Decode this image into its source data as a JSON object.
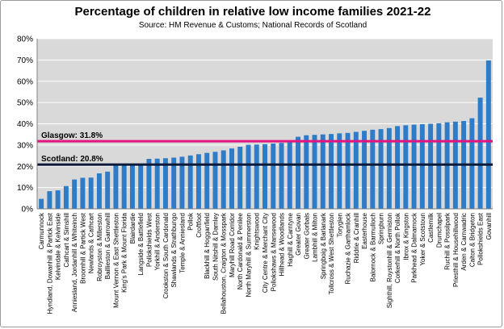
{
  "chart_data": {
    "type": "bar",
    "title": "Percentage of children in relative low income families 2021-22",
    "subtitle": "Source: HM Revenue & Customs; National Records of Scotland",
    "xlabel": "",
    "ylabel": "",
    "ylim": [
      0,
      80
    ],
    "yticks": [
      "0%",
      "10%",
      "20%",
      "30%",
      "40%",
      "50%",
      "60%",
      "70%",
      "80%"
    ],
    "grid": true,
    "bar_color": "#2e7bc8",
    "categories": [
      "Carmunnock",
      "Hyndland, Dowanhill & Partick East",
      "Kelvindale & Kelvinside",
      "Cathcart & Simshill",
      "Anniesland, Jordanhill & Whiteinch",
      "Broomhill & Partick West",
      "Newlands & Cathcart",
      "Robroyston & Millerston",
      "Baillieston & Garrowhill",
      "Mount Vernon & East Shettleston",
      "King's Park & Mount Florida",
      "Blairdardie",
      "Langside & Battlefield",
      "Pollokshields West",
      "Yorkhill & Anderston",
      "Crookston & South Cardonald",
      "Shawlands & Strathbungo",
      "Temple & Anniesland",
      "Pollok",
      "Croftfoot",
      "Blackhill & Hogganfield",
      "South Nitshill & Darnley",
      "Bellahouston, Craigton & Mosspark",
      "Maryhill Road Corridor",
      "North Cardonald & Penilee",
      "North Maryhill & Summerston",
      "Knightswood",
      "City Centre & Merchant City",
      "Pollokshaws & Mansewood",
      "Hillhead & Woodlands",
      "Haghill & Carntyne",
      "Greater Govan",
      "Greater Gorbals",
      "Lambhill & Milton",
      "Springboig & Barlanark",
      "Tollcross & West Shettleston",
      "Toryglen",
      "Ruchazie & Garthamlock",
      "Riddrie & Cranhill",
      "Easterhouse",
      "Balornock & Barmulloch",
      "Springburn",
      "Sighthill, Roystonhill & Germiston",
      "Corkerhill & North Pollok",
      "Ibrox & Kingston",
      "Parkhead & Dalmarnock",
      "Yoker & Scotstoun",
      "Castlemilk",
      "Drumchapel",
      "Ruchill & Possilpark",
      "Priesthill & Househillwood",
      "Arden & Carnwadric",
      "Calton & Bridgeton",
      "Pollokshields East",
      "Govanhill"
    ],
    "values": [
      4.7,
      8.3,
      8.7,
      10.7,
      13.8,
      14.6,
      14.7,
      16.7,
      17.5,
      20.4,
      20.6,
      20.9,
      21.0,
      23.5,
      23.6,
      23.8,
      24.1,
      24.5,
      25.1,
      25.7,
      26.3,
      26.8,
      27.5,
      28.4,
      29.2,
      30.1,
      30.2,
      30.4,
      30.7,
      31.0,
      31.4,
      33.9,
      34.6,
      34.8,
      35.0,
      35.2,
      35.5,
      35.7,
      36.2,
      36.7,
      37.2,
      37.5,
      38.0,
      38.9,
      39.3,
      39.6,
      39.8,
      40.0,
      40.2,
      40.7,
      41.0,
      41.3,
      42.6,
      52.3,
      69.8
    ],
    "reference_lines": [
      {
        "label": "Glasgow: 31.8%",
        "value": 31.8,
        "color": "#e0157f"
      },
      {
        "label": "Scotland: 20.8%",
        "value": 20.8,
        "color": "#0b1a38"
      }
    ]
  }
}
